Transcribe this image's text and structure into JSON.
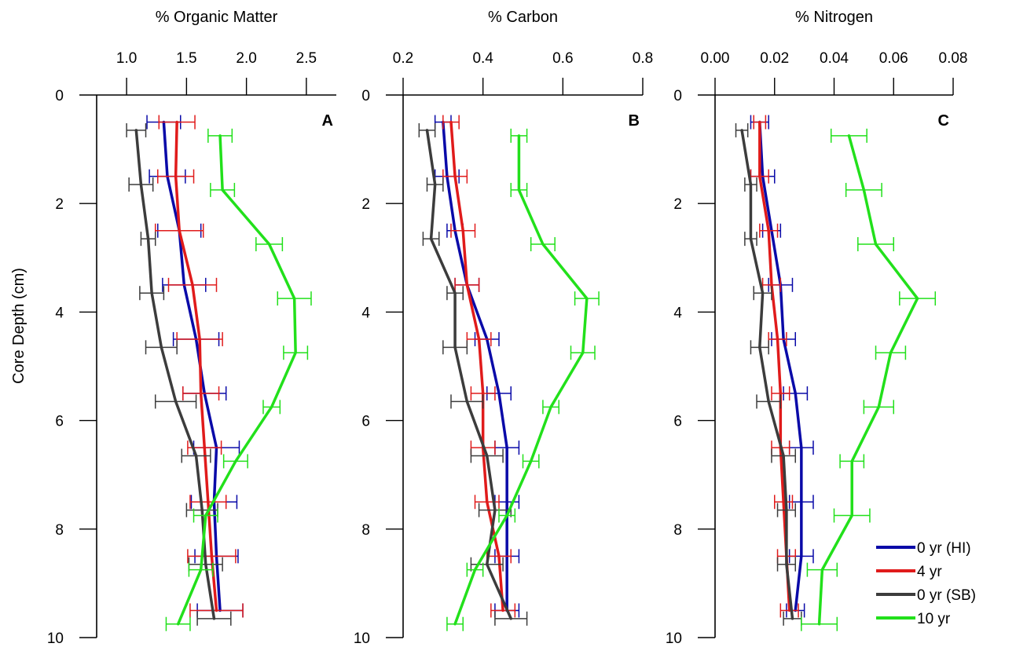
{
  "shared": {
    "ylabel": "Core Depth (cm)",
    "ylim": [
      0,
      10
    ],
    "y_ticks": [
      0,
      2,
      4,
      6,
      8,
      10
    ],
    "y_tick_labels": [
      "0",
      "2",
      "4",
      "6",
      "8",
      "10"
    ]
  },
  "legend": {
    "position": "bottom-right",
    "entries": [
      {
        "label": "0 yr (HI)",
        "color": "#0a0aa8"
      },
      {
        "label": "4 yr",
        "color": "#e01b1b"
      },
      {
        "label": "0 yr (SB)",
        "color": "#3c3c3c"
      },
      {
        "label": "10 yr",
        "color": "#22e01b"
      }
    ]
  },
  "chart_data": [
    {
      "type": "line",
      "panel": "A",
      "title": "",
      "xlabel": "% Organic Matter",
      "ylabel": "Core Depth (cm)",
      "xlim": [
        0.75,
        2.75
      ],
      "x_ticks": [
        1.0,
        1.5,
        2.0,
        2.5
      ],
      "x_tick_labels": [
        "1.0",
        "1.5",
        "2.0",
        "2.5"
      ],
      "ylim": [
        0,
        10
      ],
      "orientation": "depth-profile",
      "grid": false,
      "series": [
        {
          "name": "0 yr (HI)",
          "color": "#0a0aa8",
          "x": [
            1.31,
            1.34,
            1.44,
            1.48,
            1.58,
            1.65,
            1.75,
            1.73,
            1.75,
            1.78
          ],
          "y": [
            0.5,
            1.5,
            2.5,
            3.5,
            4.5,
            5.5,
            6.5,
            7.5,
            8.5,
            9.5
          ],
          "xerr": [
            0.14,
            0.15,
            0.18,
            0.18,
            0.19,
            0.18,
            0.19,
            0.19,
            0.18,
            0.19
          ]
        },
        {
          "name": "4 yr",
          "color": "#e01b1b",
          "x": [
            1.42,
            1.41,
            1.44,
            1.55,
            1.61,
            1.62,
            1.65,
            1.68,
            1.71,
            1.75
          ],
          "y": [
            0.5,
            1.5,
            2.5,
            3.5,
            4.5,
            5.5,
            6.5,
            7.5,
            8.5,
            9.5
          ],
          "xerr": [
            0.15,
            0.15,
            0.2,
            0.2,
            0.19,
            0.15,
            0.14,
            0.15,
            0.2,
            0.22
          ]
        },
        {
          "name": "0 yr (SB)",
          "color": "#3c3c3c",
          "x": [
            1.08,
            1.12,
            1.18,
            1.21,
            1.29,
            1.41,
            1.58,
            1.63,
            1.66,
            1.73
          ],
          "y": [
            0.65,
            1.65,
            2.65,
            3.65,
            4.65,
            5.65,
            6.65,
            7.65,
            8.65,
            9.65
          ],
          "xerr": [
            0.08,
            0.1,
            0.06,
            0.1,
            0.13,
            0.17,
            0.12,
            0.13,
            0.14,
            0.14
          ]
        },
        {
          "name": "10 yr",
          "color": "#22e01b",
          "x": [
            1.78,
            1.8,
            2.19,
            2.4,
            2.41,
            2.21,
            1.91,
            1.66,
            1.62,
            1.43
          ],
          "y": [
            0.75,
            1.75,
            2.75,
            3.75,
            4.75,
            5.75,
            6.75,
            7.75,
            8.75,
            9.75
          ],
          "xerr": [
            0.1,
            0.1,
            0.11,
            0.14,
            0.1,
            0.07,
            0.1,
            0.1,
            0.1,
            0.1
          ]
        }
      ]
    },
    {
      "type": "line",
      "panel": "B",
      "title": "",
      "xlabel": "% Carbon",
      "ylabel": "Core Depth (cm)",
      "xlim": [
        0.2,
        0.8
      ],
      "x_ticks": [
        0.2,
        0.4,
        0.6,
        0.8
      ],
      "x_tick_labels": [
        "0.2",
        "0.4",
        "0.6",
        "0.8"
      ],
      "ylim": [
        0,
        10
      ],
      "orientation": "depth-profile",
      "grid": false,
      "series": [
        {
          "name": "0 yr (HI)",
          "color": "#0a0aa8",
          "x": [
            0.3,
            0.31,
            0.33,
            0.36,
            0.41,
            0.44,
            0.46,
            0.46,
            0.46,
            0.46
          ],
          "y": [
            0.5,
            1.5,
            2.5,
            3.5,
            4.5,
            5.5,
            6.5,
            7.5,
            8.5,
            9.5
          ],
          "xerr": [
            0.02,
            0.03,
            0.02,
            0.03,
            0.03,
            0.03,
            0.03,
            0.03,
            0.03,
            0.03
          ]
        },
        {
          "name": "4 yr",
          "color": "#e01b1b",
          "x": [
            0.32,
            0.33,
            0.35,
            0.36,
            0.39,
            0.4,
            0.4,
            0.41,
            0.44,
            0.45
          ],
          "y": [
            0.5,
            1.5,
            2.5,
            3.5,
            4.5,
            5.5,
            6.5,
            7.5,
            8.5,
            9.5
          ],
          "xerr": [
            0.02,
            0.03,
            0.03,
            0.03,
            0.03,
            0.03,
            0.03,
            0.03,
            0.03,
            0.03
          ]
        },
        {
          "name": "0 yr (SB)",
          "color": "#3c3c3c",
          "x": [
            0.26,
            0.28,
            0.27,
            0.33,
            0.33,
            0.36,
            0.41,
            0.43,
            0.41,
            0.47
          ],
          "y": [
            0.65,
            1.65,
            2.65,
            3.65,
            4.65,
            5.65,
            6.65,
            7.65,
            8.65,
            9.65
          ],
          "xerr": [
            0.02,
            0.02,
            0.02,
            0.02,
            0.03,
            0.04,
            0.04,
            0.04,
            0.04,
            0.04
          ]
        },
        {
          "name": "10 yr",
          "color": "#22e01b",
          "x": [
            0.49,
            0.49,
            0.55,
            0.66,
            0.65,
            0.57,
            0.52,
            0.46,
            0.38,
            0.33
          ],
          "y": [
            0.75,
            1.75,
            2.75,
            3.75,
            4.75,
            5.75,
            6.75,
            7.75,
            8.75,
            9.75
          ],
          "xerr": [
            0.02,
            0.02,
            0.03,
            0.03,
            0.03,
            0.02,
            0.02,
            0.02,
            0.02,
            0.02
          ]
        }
      ]
    },
    {
      "type": "line",
      "panel": "C",
      "title": "",
      "xlabel": "% Nitrogen",
      "ylabel": "Core Depth (cm)",
      "xlim": [
        0.0,
        0.08
      ],
      "x_ticks": [
        0.0,
        0.02,
        0.04,
        0.06,
        0.08
      ],
      "x_tick_labels": [
        "0.00",
        "0.02",
        "0.04",
        "0.06",
        "0.08"
      ],
      "ylim": [
        0,
        10
      ],
      "orientation": "depth-profile",
      "grid": false,
      "series": [
        {
          "name": "0 yr (HI)",
          "color": "#0a0aa8",
          "x": [
            0.015,
            0.016,
            0.019,
            0.022,
            0.023,
            0.027,
            0.029,
            0.029,
            0.029,
            0.027
          ],
          "y": [
            0.5,
            1.5,
            2.5,
            3.5,
            4.5,
            5.5,
            6.5,
            7.5,
            8.5,
            9.5
          ],
          "xerr": [
            0.003,
            0.004,
            0.003,
            0.004,
            0.004,
            0.004,
            0.004,
            0.004,
            0.004,
            0.003
          ]
        },
        {
          "name": "4 yr",
          "color": "#e01b1b",
          "x": [
            0.015,
            0.015,
            0.018,
            0.019,
            0.021,
            0.022,
            0.022,
            0.023,
            0.024,
            0.025
          ],
          "y": [
            0.5,
            1.5,
            2.5,
            3.5,
            4.5,
            5.5,
            6.5,
            7.5,
            8.5,
            9.5
          ],
          "xerr": [
            0.002,
            0.003,
            0.003,
            0.003,
            0.003,
            0.003,
            0.003,
            0.003,
            0.003,
            0.003
          ]
        },
        {
          "name": "0 yr (SB)",
          "color": "#3c3c3c",
          "x": [
            0.009,
            0.012,
            0.012,
            0.016,
            0.015,
            0.018,
            0.023,
            0.024,
            0.024,
            0.026
          ],
          "y": [
            0.65,
            1.65,
            2.65,
            3.65,
            4.65,
            5.65,
            6.65,
            7.65,
            8.65,
            9.65
          ],
          "xerr": [
            0.002,
            0.002,
            0.002,
            0.003,
            0.003,
            0.004,
            0.004,
            0.003,
            0.003,
            0.003
          ]
        },
        {
          "name": "10 yr",
          "color": "#22e01b",
          "x": [
            0.045,
            0.05,
            0.054,
            0.068,
            0.059,
            0.055,
            0.046,
            0.046,
            0.036,
            0.035
          ],
          "y": [
            0.75,
            1.75,
            2.75,
            3.75,
            4.75,
            5.75,
            6.75,
            7.75,
            8.75,
            9.75
          ],
          "xerr": [
            0.006,
            0.006,
            0.006,
            0.006,
            0.005,
            0.005,
            0.004,
            0.006,
            0.005,
            0.006
          ]
        }
      ]
    }
  ]
}
